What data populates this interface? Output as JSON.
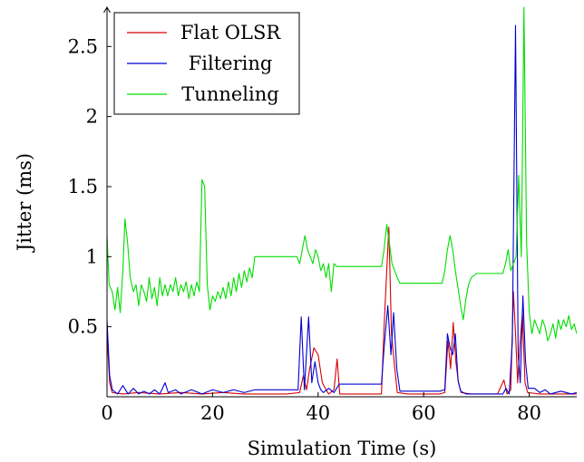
{
  "chart_data": {
    "type": "line",
    "title": "",
    "xlabel": "Simulation Time (s)",
    "ylabel": "Jitter (ms)",
    "xlim": [
      0,
      89
    ],
    "ylim": [
      0,
      2.78
    ],
    "x_ticks": [
      0,
      20,
      40,
      60,
      80
    ],
    "x_tick_labels": [
      "0",
      "20",
      "40",
      "60",
      "80"
    ],
    "y_ticks": [
      0.5,
      1,
      1.5,
      2,
      2.5
    ],
    "y_tick_labels": [
      "0.5",
      "1",
      "1.5",
      "2",
      "2.5"
    ],
    "grid": false,
    "legend_position": "top-left",
    "series": [
      {
        "name": "Flat OLSR",
        "color": "#d40000",
        "points": [
          [
            0,
            0.45
          ],
          [
            0.5,
            0.1
          ],
          [
            1,
            0.03
          ],
          [
            3,
            0.02
          ],
          [
            6,
            0.03
          ],
          [
            10,
            0.02
          ],
          [
            14,
            0.03
          ],
          [
            18,
            0.02
          ],
          [
            22,
            0.03
          ],
          [
            26,
            0.02
          ],
          [
            30,
            0.02
          ],
          [
            34,
            0.02
          ],
          [
            36.5,
            0.03
          ],
          [
            37.2,
            0.15
          ],
          [
            37.8,
            0.05
          ],
          [
            38.4,
            0.2
          ],
          [
            39.2,
            0.35
          ],
          [
            40,
            0.3
          ],
          [
            40.8,
            0.1
          ],
          [
            41.5,
            0.05
          ],
          [
            42,
            0.02
          ],
          [
            43,
            0.05
          ],
          [
            43.6,
            0.27
          ],
          [
            44.1,
            0.02
          ],
          [
            46,
            0.02
          ],
          [
            50,
            0.02
          ],
          [
            52,
            0.02
          ],
          [
            52.5,
            0.5
          ],
          [
            53,
            0.9
          ],
          [
            53.4,
            1.21
          ],
          [
            53.9,
            0.45
          ],
          [
            54.4,
            0.25
          ],
          [
            55,
            0.03
          ],
          [
            57,
            0.02
          ],
          [
            60,
            0.02
          ],
          [
            63,
            0.02
          ],
          [
            64,
            0.03
          ],
          [
            64.6,
            0.4
          ],
          [
            65.1,
            0.2
          ],
          [
            65.6,
            0.53
          ],
          [
            66.1,
            0.25
          ],
          [
            66.6,
            0.1
          ],
          [
            67.1,
            0.03
          ],
          [
            69,
            0.02
          ],
          [
            72,
            0.02
          ],
          [
            74,
            0.02
          ],
          [
            75.2,
            0.12
          ],
          [
            75.8,
            0.02
          ],
          [
            76.5,
            0.05
          ],
          [
            77,
            0.75
          ],
          [
            77.4,
            0.45
          ],
          [
            77.8,
            0.1
          ],
          [
            78.2,
            0.35
          ],
          [
            78.7,
            0.6
          ],
          [
            79.2,
            0.1
          ],
          [
            79.7,
            0.03
          ],
          [
            82,
            0.02
          ],
          [
            86,
            0.02
          ],
          [
            89,
            0.02
          ]
        ]
      },
      {
        "name": "Filtering",
        "color": "#0000d4",
        "points": [
          [
            0,
            0.55
          ],
          [
            0.5,
            0.15
          ],
          [
            1,
            0.05
          ],
          [
            2,
            0.02
          ],
          [
            3,
            0.08
          ],
          [
            4,
            0.02
          ],
          [
            5,
            0.06
          ],
          [
            6,
            0.02
          ],
          [
            7,
            0.04
          ],
          [
            8,
            0.02
          ],
          [
            9,
            0.05
          ],
          [
            10,
            0.02
          ],
          [
            11,
            0.1
          ],
          [
            11.6,
            0.03
          ],
          [
            13,
            0.05
          ],
          [
            14,
            0.02
          ],
          [
            16,
            0.05
          ],
          [
            18,
            0.02
          ],
          [
            20,
            0.05
          ],
          [
            22,
            0.03
          ],
          [
            24,
            0.05
          ],
          [
            26,
            0.03
          ],
          [
            28,
            0.05
          ],
          [
            30,
            0.05
          ],
          [
            33,
            0.05
          ],
          [
            35,
            0.05
          ],
          [
            36.2,
            0.05
          ],
          [
            36.8,
            0.57
          ],
          [
            37.4,
            0.05
          ],
          [
            38.2,
            0.57
          ],
          [
            38.8,
            0.1
          ],
          [
            39.4,
            0.25
          ],
          [
            40,
            0.1
          ],
          [
            40.5,
            0.05
          ],
          [
            41,
            0.03
          ],
          [
            42,
            0.06
          ],
          [
            43,
            0.03
          ],
          [
            44,
            0.09
          ],
          [
            46,
            0.09
          ],
          [
            50,
            0.09
          ],
          [
            52,
            0.09
          ],
          [
            52.5,
            0.35
          ],
          [
            53.2,
            0.65
          ],
          [
            53.8,
            0.3
          ],
          [
            54.3,
            0.6
          ],
          [
            54.9,
            0.2
          ],
          [
            55.5,
            0.04
          ],
          [
            57,
            0.04
          ],
          [
            60,
            0.04
          ],
          [
            63,
            0.04
          ],
          [
            64,
            0.05
          ],
          [
            64.5,
            0.45
          ],
          [
            65,
            0.35
          ],
          [
            65.5,
            0.3
          ],
          [
            66,
            0.45
          ],
          [
            66.5,
            0.12
          ],
          [
            67,
            0.04
          ],
          [
            68,
            0.02
          ],
          [
            70,
            0.02
          ],
          [
            72,
            0.02
          ],
          [
            74,
            0.02
          ],
          [
            75,
            0.02
          ],
          [
            75.6,
            0.06
          ],
          [
            76.2,
            0.02
          ],
          [
            76.8,
            0.4
          ],
          [
            77.4,
            2.65
          ],
          [
            77.9,
            0.3
          ],
          [
            78.3,
            0.1
          ],
          [
            78.8,
            0.72
          ],
          [
            79.3,
            0.25
          ],
          [
            79.8,
            0.06
          ],
          [
            81,
            0.06
          ],
          [
            82,
            0.03
          ],
          [
            83,
            0.05
          ],
          [
            84,
            0.02
          ],
          [
            86,
            0.04
          ],
          [
            88,
            0.02
          ],
          [
            89,
            0.03
          ]
        ]
      },
      {
        "name": "Tunneling",
        "color": "#00dd00",
        "points": [
          [
            0,
            1.15
          ],
          [
            0.4,
            0.8
          ],
          [
            1,
            0.75
          ],
          [
            1.5,
            0.62
          ],
          [
            2,
            0.78
          ],
          [
            2.5,
            0.6
          ],
          [
            3,
            0.9
          ],
          [
            3.4,
            1.27
          ],
          [
            3.9,
            1.1
          ],
          [
            4.4,
            0.85
          ],
          [
            5,
            0.75
          ],
          [
            5.5,
            0.8
          ],
          [
            6,
            0.65
          ],
          [
            6.5,
            0.8
          ],
          [
            7,
            0.75
          ],
          [
            7.5,
            0.68
          ],
          [
            8,
            0.85
          ],
          [
            8.5,
            0.7
          ],
          [
            9,
            0.78
          ],
          [
            9.5,
            0.65
          ],
          [
            10,
            0.85
          ],
          [
            10.5,
            0.72
          ],
          [
            11,
            0.8
          ],
          [
            11.5,
            0.72
          ],
          [
            12,
            0.8
          ],
          [
            12.5,
            0.75
          ],
          [
            13,
            0.85
          ],
          [
            13.5,
            0.72
          ],
          [
            14,
            0.8
          ],
          [
            14.5,
            0.75
          ],
          [
            15,
            0.82
          ],
          [
            15.5,
            0.7
          ],
          [
            16,
            0.8
          ],
          [
            16.5,
            0.72
          ],
          [
            17,
            0.82
          ],
          [
            17.5,
            0.75
          ],
          [
            18,
            1.55
          ],
          [
            18.5,
            1.5
          ],
          [
            19,
            0.8
          ],
          [
            19.5,
            0.62
          ],
          [
            20,
            0.72
          ],
          [
            20.5,
            0.68
          ],
          [
            21,
            0.75
          ],
          [
            21.5,
            0.7
          ],
          [
            22,
            0.78
          ],
          [
            22.5,
            0.7
          ],
          [
            23,
            0.82
          ],
          [
            23.5,
            0.72
          ],
          [
            24,
            0.85
          ],
          [
            24.5,
            0.75
          ],
          [
            25,
            0.88
          ],
          [
            25.5,
            0.78
          ],
          [
            26,
            0.9
          ],
          [
            26.5,
            0.82
          ],
          [
            27,
            0.92
          ],
          [
            27.5,
            0.85
          ],
          [
            28,
            1.0
          ],
          [
            30,
            1.0
          ],
          [
            33,
            1.0
          ],
          [
            35,
            1.0
          ],
          [
            36,
            1.0
          ],
          [
            36.5,
            0.95
          ],
          [
            37,
            1.05
          ],
          [
            37.5,
            1.15
          ],
          [
            38,
            1.05
          ],
          [
            38.5,
            1.0
          ],
          [
            39,
            0.95
          ],
          [
            39.5,
            1.05
          ],
          [
            40,
            1.0
          ],
          [
            40.5,
            0.9
          ],
          [
            41,
            0.95
          ],
          [
            41.5,
            0.85
          ],
          [
            42,
            0.95
          ],
          [
            42.5,
            0.75
          ],
          [
            43,
            0.95
          ],
          [
            43.5,
            0.93
          ],
          [
            44,
            0.93
          ],
          [
            48,
            0.93
          ],
          [
            51,
            0.93
          ],
          [
            52,
            0.93
          ],
          [
            52.5,
            1.05
          ],
          [
            53,
            1.23
          ],
          [
            53.5,
            1.1
          ],
          [
            54,
            0.95
          ],
          [
            54.5,
            0.9
          ],
          [
            55,
            0.85
          ],
          [
            55.5,
            0.81
          ],
          [
            57,
            0.81
          ],
          [
            60,
            0.81
          ],
          [
            62,
            0.81
          ],
          [
            63,
            0.81
          ],
          [
            63.5,
            0.81
          ],
          [
            64,
            0.9
          ],
          [
            64.5,
            1.05
          ],
          [
            65,
            1.15
          ],
          [
            65.5,
            1.05
          ],
          [
            66,
            0.9
          ],
          [
            66.5,
            0.78
          ],
          [
            67,
            0.65
          ],
          [
            67.5,
            0.55
          ],
          [
            68,
            0.7
          ],
          [
            68.5,
            0.8
          ],
          [
            69,
            0.85
          ],
          [
            70,
            0.88
          ],
          [
            72,
            0.88
          ],
          [
            74,
            0.88
          ],
          [
            75,
            0.88
          ],
          [
            75.5,
            0.95
          ],
          [
            76,
            1.05
          ],
          [
            76.5,
            0.9
          ],
          [
            77,
            0.95
          ],
          [
            77.5,
            1.0
          ],
          [
            78,
            1.58
          ],
          [
            78.5,
            1.0
          ],
          [
            79,
            2.78
          ],
          [
            79.5,
            1.1
          ],
          [
            80,
            0.6
          ],
          [
            80.5,
            0.45
          ],
          [
            81,
            0.55
          ],
          [
            81.5,
            0.5
          ],
          [
            82,
            0.45
          ],
          [
            82.5,
            0.55
          ],
          [
            83,
            0.5
          ],
          [
            83.5,
            0.4
          ],
          [
            84,
            0.45
          ],
          [
            84.5,
            0.52
          ],
          [
            85,
            0.42
          ],
          [
            85.5,
            0.55
          ],
          [
            86,
            0.48
          ],
          [
            86.5,
            0.55
          ],
          [
            87,
            0.5
          ],
          [
            87.5,
            0.58
          ],
          [
            88,
            0.48
          ],
          [
            88.5,
            0.52
          ],
          [
            89,
            0.45
          ]
        ]
      }
    ]
  }
}
